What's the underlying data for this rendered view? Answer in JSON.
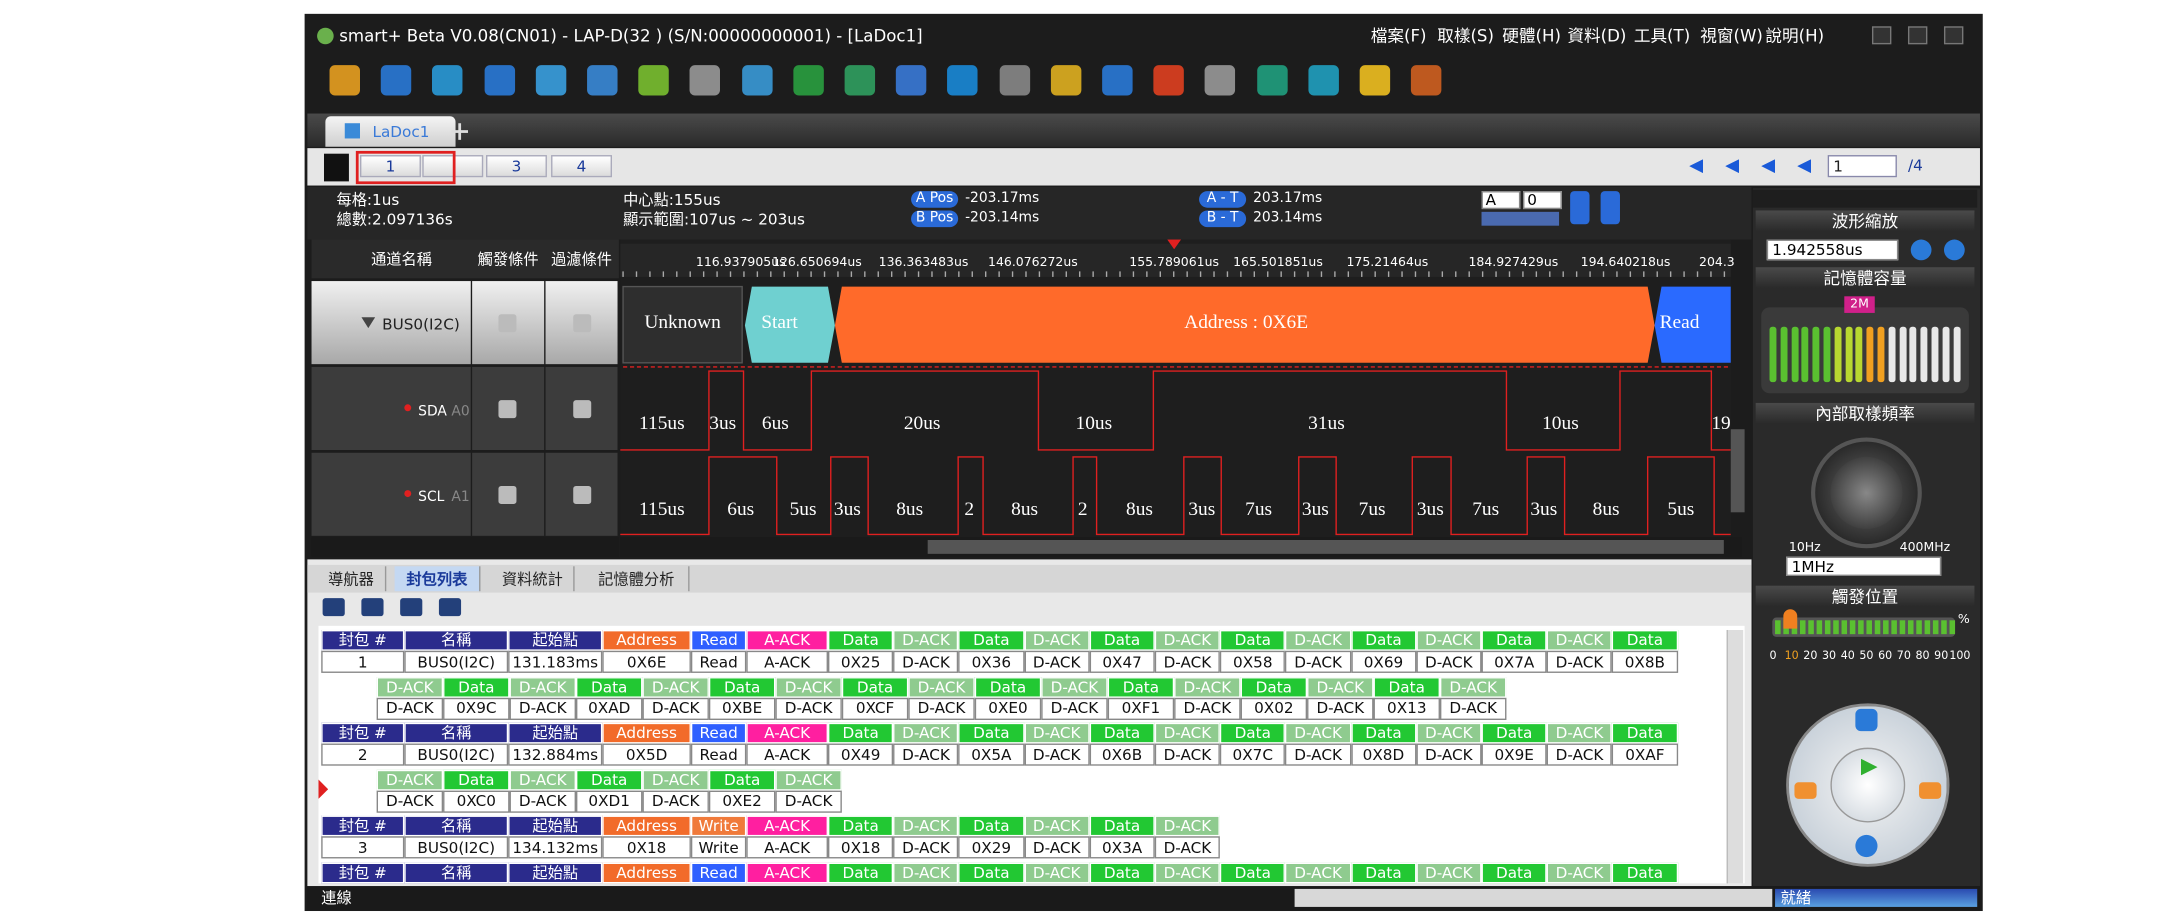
{
  "window": {
    "title": "smart+ Beta V0.08(CN01) - LAP-D(32      ) (S/N:00000000001) - [LaDoc1]",
    "menu": [
      "檔案(F)",
      "取樣(S)",
      "硬體(H)",
      "資料(D)",
      "工具(T)",
      "視窗(W)",
      "說明(H)"
    ]
  },
  "document_tab": "LaDoc1",
  "pages": {
    "buttons": [
      "1",
      "3",
      "4"
    ],
    "current": "1",
    "total": "/4"
  },
  "info": {
    "per_div": "每格:1us",
    "total": "總數:2.097136s",
    "center": "中心點:155us",
    "range": "顯示範圍:107us ~ 203us",
    "a_pos_label": "A Pos",
    "a_pos": "-203.17ms",
    "b_pos_label": "B Pos",
    "b_pos": "-203.14ms",
    "a_t_label": "A - T",
    "a_t": "203.17ms",
    "b_t_label": "B - T",
    "b_t": "203.14ms",
    "selects": [
      "A",
      "0"
    ]
  },
  "channel_headers": [
    "通道名稱",
    "觸發條件",
    "過濾條件"
  ],
  "channels": [
    {
      "name": "BUS0(I2C)"
    },
    {
      "name": "SDA",
      "pin": "A0"
    },
    {
      "name": "SCL",
      "pin": "A1"
    }
  ],
  "time_ruler": [
    "116.937905us",
    "126.650694us",
    "136.363483us",
    "146.076272us",
    "155.789061us",
    "165.501851us",
    "175.21464us",
    "184.927429us",
    "194.640218us",
    "204.3"
  ],
  "bus_decode": [
    "Unknown",
    "Start",
    "Address : 0X6E",
    "Read"
  ],
  "sda_labels": [
    "115us",
    "3us",
    "6us",
    "20us",
    "10us",
    "31us",
    "10us",
    "19"
  ],
  "scl_labels": [
    "115us",
    "6us",
    "5us",
    "3us",
    "8us",
    "2",
    "8us",
    "2",
    "8us",
    "3us",
    "7us",
    "3us",
    "7us",
    "3us",
    "7us",
    "3us",
    "8us",
    "5us"
  ],
  "bottom_tabs": [
    "導航器",
    "封包列表",
    "資料統計",
    "記憶體分析"
  ],
  "packet_header_colors": {
    "封包 #": "#2b2b8c",
    "名稱": "#2b2b8c",
    "起始點": "#2b2b8c",
    "Address": "#f26b2a",
    "Read": "#2f5fff",
    "Write": "#f07a3a",
    "A-ACK": "#ff1fa0",
    "Data": "#22c833",
    "D-ACK": "#8fcb8f"
  },
  "packets": [
    {
      "header": [
        "封包 #",
        "名稱",
        "起始點",
        "Address",
        "Read",
        "A-ACK",
        "Data",
        "D-ACK",
        "Data",
        "D-ACK",
        "Data",
        "D-ACK",
        "Data",
        "D-ACK",
        "Data",
        "D-ACK",
        "Data",
        "D-ACK",
        "Data"
      ],
      "values": [
        "1",
        "BUS0(I2C)",
        "131.183ms",
        "0X6E",
        "Read",
        "A-ACK",
        "0X25",
        "D-ACK",
        "0X36",
        "D-ACK",
        "0X47",
        "D-ACK",
        "0X58",
        "D-ACK",
        "0X69",
        "D-ACK",
        "0X7A",
        "D-ACK",
        "0X8B"
      ],
      "continuation": {
        "header": [
          "D-ACK",
          "Data",
          "D-ACK",
          "Data",
          "D-ACK",
          "Data",
          "D-ACK",
          "Data",
          "D-ACK",
          "Data",
          "D-ACK",
          "Data",
          "D-ACK",
          "Data",
          "D-ACK",
          "Data",
          "D-ACK"
        ],
        "values": [
          "D-ACK",
          "0X9C",
          "D-ACK",
          "0XAD",
          "D-ACK",
          "0XBE",
          "D-ACK",
          "0XCF",
          "D-ACK",
          "0XE0",
          "D-ACK",
          "0XF1",
          "D-ACK",
          "0X02",
          "D-ACK",
          "0X13",
          "D-ACK"
        ]
      }
    },
    {
      "header": [
        "封包 #",
        "名稱",
        "起始點",
        "Address",
        "Read",
        "A-ACK",
        "Data",
        "D-ACK",
        "Data",
        "D-ACK",
        "Data",
        "D-ACK",
        "Data",
        "D-ACK",
        "Data",
        "D-ACK",
        "Data",
        "D-ACK",
        "Data"
      ],
      "values": [
        "2",
        "BUS0(I2C)",
        "132.884ms",
        "0X5D",
        "Read",
        "A-ACK",
        "0X49",
        "D-ACK",
        "0X5A",
        "D-ACK",
        "0X6B",
        "D-ACK",
        "0X7C",
        "D-ACK",
        "0X8D",
        "D-ACK",
        "0X9E",
        "D-ACK",
        "0XAF"
      ],
      "continuation": {
        "header": [
          "D-ACK",
          "Data",
          "D-ACK",
          "Data",
          "D-ACK",
          "Data",
          "D-ACK"
        ],
        "values": [
          "D-ACK",
          "0XC0",
          "D-ACK",
          "0XD1",
          "D-ACK",
          "0XE2",
          "D-ACK"
        ]
      }
    },
    {
      "header": [
        "封包 #",
        "名稱",
        "起始點",
        "Address",
        "Write",
        "A-ACK",
        "Data",
        "D-ACK",
        "Data",
        "D-ACK",
        "Data",
        "D-ACK"
      ],
      "values": [
        "3",
        "BUS0(I2C)",
        "134.132ms",
        "0X18",
        "Write",
        "A-ACK",
        "0X18",
        "D-ACK",
        "0X29",
        "D-ACK",
        "0X3A",
        "D-ACK"
      ]
    },
    {
      "header": [
        "封包 #",
        "名稱",
        "起始點",
        "Address",
        "Read",
        "A-ACK",
        "Data",
        "D-ACK",
        "Data",
        "D-ACK",
        "Data",
        "D-ACK",
        "Data",
        "D-ACK",
        "Data",
        "D-ACK",
        "Data",
        "D-ACK",
        "Data"
      ]
    }
  ],
  "right_panel": {
    "zoom_title": "波形縮放",
    "zoom_value": "1.942558us",
    "memory_title": "記憶體容量",
    "memory_marker": "2M",
    "rate_title": "內部取樣頻率",
    "rate_min": "10Hz",
    "rate_max": "400MHz",
    "rate_value": "1MHz",
    "trigger_title": "觸發位置",
    "trigger_unit": "%",
    "trigger_scale": [
      "0",
      "10",
      "20",
      "30",
      "40",
      "50",
      "60",
      "70",
      "80",
      "90",
      "100"
    ]
  },
  "status": {
    "left": "連線",
    "right": "就緒"
  }
}
